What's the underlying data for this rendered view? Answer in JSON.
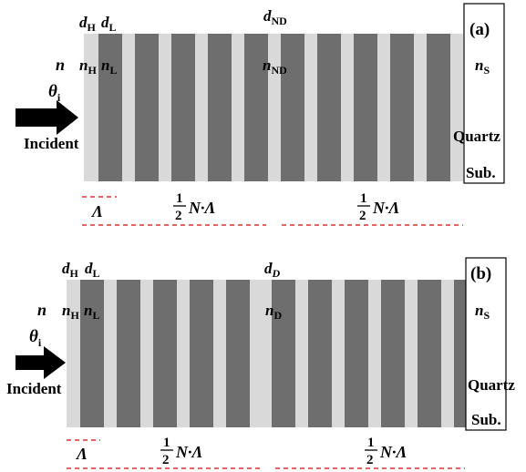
{
  "colors": {
    "light_layer": "#d9d9d9",
    "dark_layer": "#6e6e6e",
    "dash_line": "#e03030",
    "text": "#000000"
  },
  "panels": [
    {
      "id": "a",
      "panel_label": "(a)",
      "layer_labels": {
        "dH": "d",
        "dH_sub": "H",
        "dL": "d",
        "dL_sub": "L",
        "defect": "d",
        "defect_sub": "ND"
      },
      "index_labels": {
        "n": "n",
        "nH": "n",
        "nH_sub": "H",
        "nL": "n",
        "nL_sub": "L",
        "defect": "n",
        "defect_sub": "ND",
        "nS": "n",
        "nS_sub": "S"
      },
      "angle_label": {
        "symbol": "θ",
        "sub": "i"
      },
      "incident_label": "Incident",
      "substrate_label": [
        "Quartz",
        "Sub."
      ],
      "period_label": "Λ",
      "half_stack_label": {
        "num": "1",
        "den": "2",
        "rest": "N·Λ"
      }
    },
    {
      "id": "b",
      "panel_label": "(b)",
      "layer_labels": {
        "dH": "d",
        "dH_sub": "H",
        "dL": "d",
        "dL_sub": "L",
        "defect": "d",
        "defect_sub": "D"
      },
      "index_labels": {
        "n": "n",
        "nH": "n",
        "nH_sub": "H",
        "nL": "n",
        "nL_sub": "L",
        "defect": "n",
        "defect_sub": "D",
        "nS": "n",
        "nS_sub": "S"
      },
      "angle_label": {
        "symbol": "θ",
        "sub": "i"
      },
      "incident_label": "Incident",
      "substrate_label": [
        "Quartz",
        "Sub."
      ],
      "period_label": "Λ",
      "half_stack_label": {
        "num": "1",
        "den": "2",
        "rest": "N·Λ"
      }
    }
  ]
}
